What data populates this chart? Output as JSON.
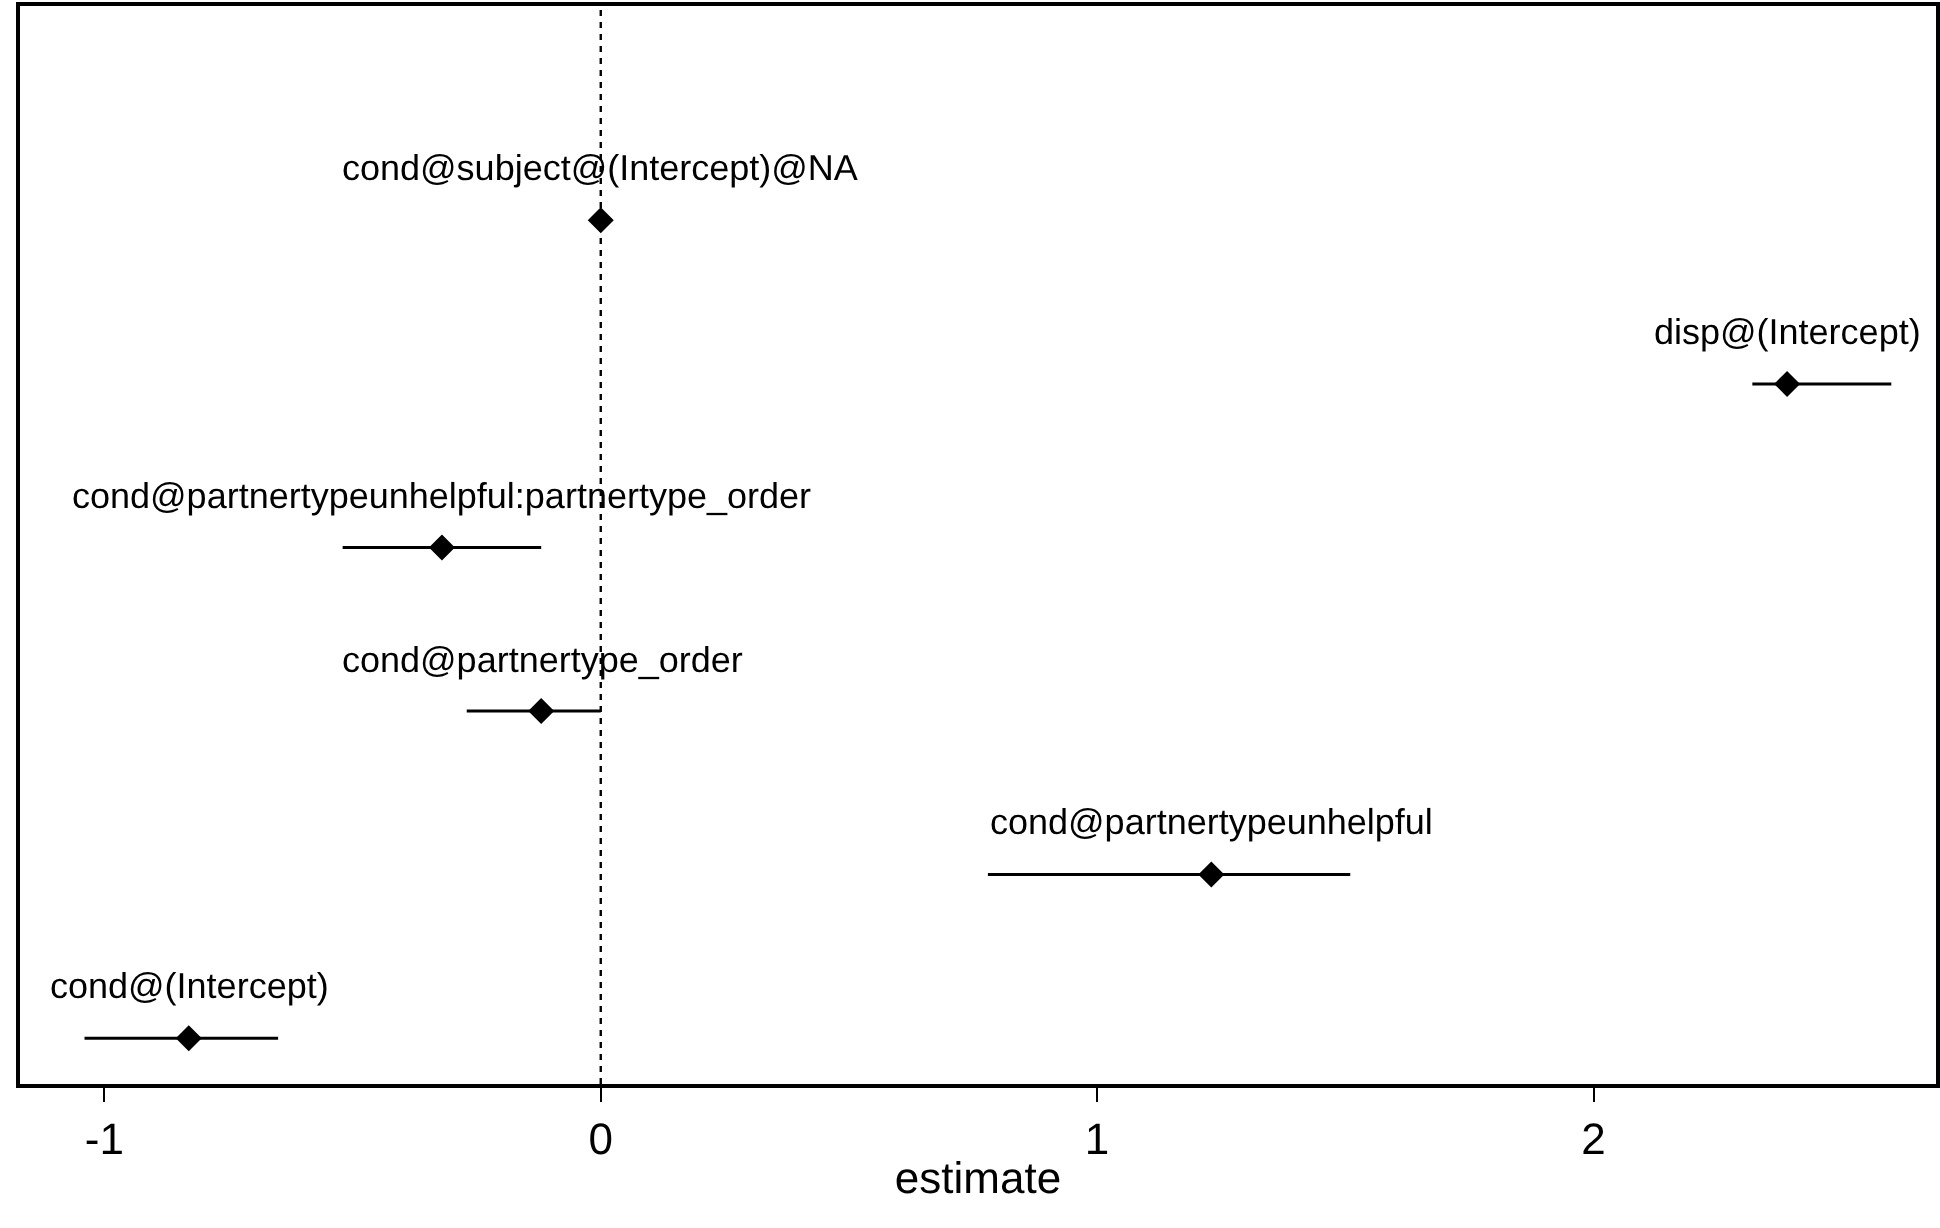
{
  "chart_data": {
    "type": "scatter",
    "orientation": "horizontal",
    "xlabel": "estimate",
    "categories": [
      "cond@subject@(Intercept)@NA",
      "disp@(Intercept)",
      "cond@partnertypeunhelpful:partnertype_order",
      "cond@partnertype_order",
      "cond@partnertypeunhelpful",
      "cond@(Intercept)"
    ],
    "values": [
      0,
      2.39,
      -0.32,
      -0.12,
      1.23,
      -0.83
    ],
    "errors": [
      null,
      [
        2.32,
        2.6
      ],
      [
        -0.52,
        -0.12
      ],
      [
        -0.27,
        0
      ],
      [
        0.78,
        1.51
      ],
      [
        -1.04,
        -0.65
      ]
    ],
    "color": "#000000",
    "marker": "diamond",
    "xlim": [
      -1.17,
      2.69
    ],
    "xticks": [
      -1,
      0,
      1,
      2
    ],
    "ref_lines": [
      {
        "axis": "x",
        "value": 0,
        "line_style": "dotted",
        "color": "#000000"
      }
    ],
    "grid": false,
    "legend": false,
    "tick_labels": "x"
  }
}
